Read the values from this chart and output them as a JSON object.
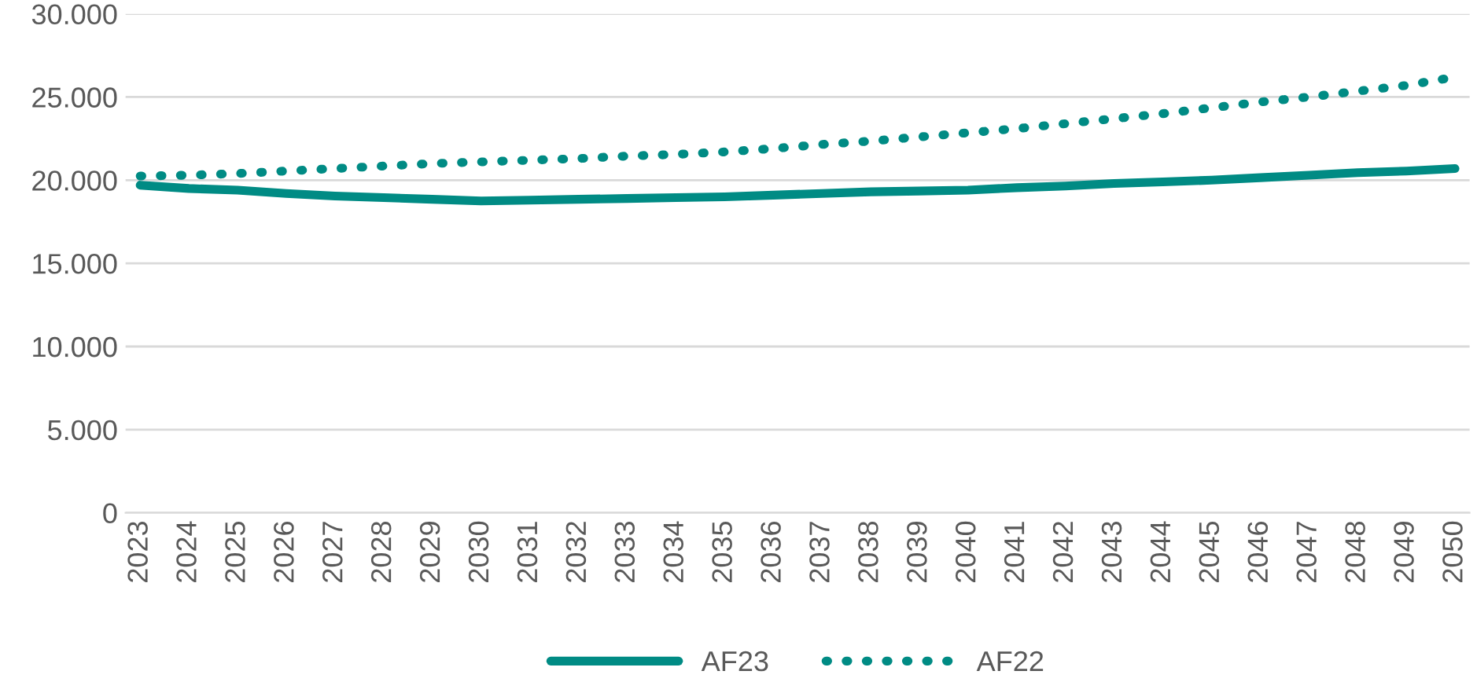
{
  "chart_data": {
    "type": "line",
    "categories": [
      "2023",
      "2024",
      "2025",
      "2026",
      "2027",
      "2028",
      "2029",
      "2030",
      "2031",
      "2032",
      "2033",
      "2034",
      "2035",
      "2036",
      "2037",
      "2038",
      "2039",
      "2040",
      "2041",
      "2042",
      "2043",
      "2044",
      "2045",
      "2046",
      "2047",
      "2048",
      "2049",
      "2050"
    ],
    "series": [
      {
        "name": "AF23",
        "color": "#008b84",
        "line_style": "solid",
        "values": [
          19700,
          19500,
          19400,
          19200,
          19050,
          18950,
          18850,
          18750,
          18800,
          18850,
          18900,
          18950,
          19000,
          19100,
          19200,
          19300,
          19350,
          19400,
          19550,
          19650,
          19800,
          19900,
          20000,
          20150,
          20300,
          20450,
          20550,
          20700
        ]
      },
      {
        "name": "AF22",
        "color": "#008b84",
        "line_style": "dotted",
        "values": [
          20250,
          20300,
          20400,
          20550,
          20700,
          20850,
          21000,
          21100,
          21200,
          21300,
          21450,
          21550,
          21700,
          21900,
          22150,
          22350,
          22600,
          22850,
          23100,
          23400,
          23700,
          24000,
          24350,
          24700,
          25000,
          25350,
          25700,
          26200
        ]
      }
    ],
    "ylim": [
      0,
      30000
    ],
    "yticks": [
      0,
      {
        "value": 5000,
        "label": "5.000"
      },
      {
        "value": 10000,
        "label": "10.000"
      },
      {
        "value": 15000,
        "label": "15.000"
      },
      {
        "value": 20000,
        "label": "20.000"
      },
      {
        "value": 25000,
        "label": "25.000"
      },
      {
        "value": 30000,
        "label": "30.000"
      }
    ],
    "grid": "y",
    "legend": "bottom",
    "marker": "none"
  }
}
